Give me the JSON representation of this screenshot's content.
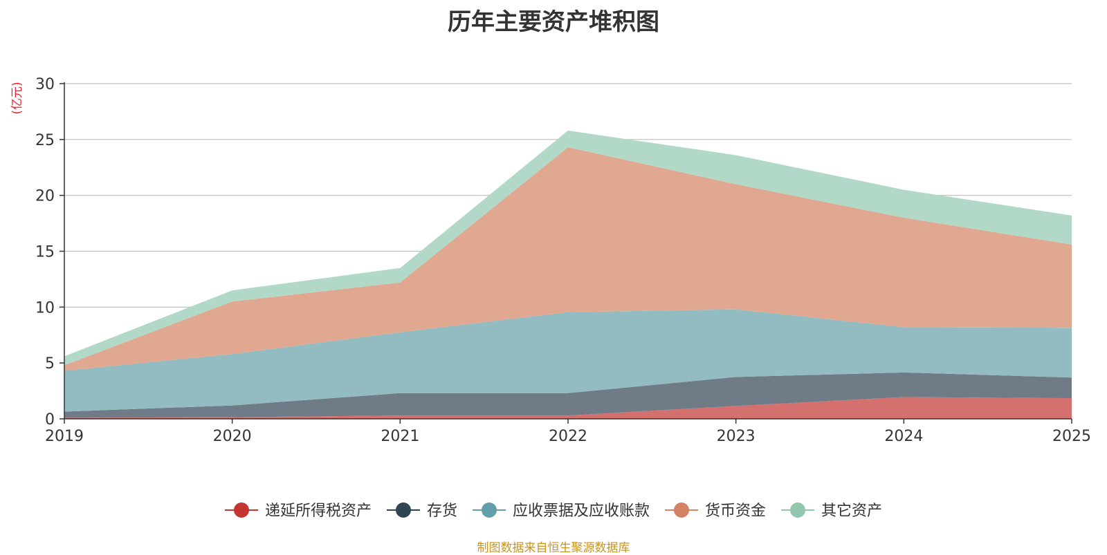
{
  "chart_data": {
    "type": "area",
    "title": "历年主要资产堆积图",
    "ylabel": "(亿元)",
    "xlabel": "",
    "categories": [
      "2019",
      "2020",
      "2021",
      "2022",
      "2023",
      "2024",
      "2025"
    ],
    "ylim": [
      0,
      30
    ],
    "yticks": [
      0,
      5,
      10,
      15,
      20,
      25,
      30
    ],
    "stacked": true,
    "grid": true,
    "legend_position": "bottom",
    "series": [
      {
        "name": "递延所得税资产",
        "color": "#c23531",
        "fill": "#d4706e",
        "values": [
          0.1,
          0.15,
          0.3,
          0.3,
          1.15,
          1.95,
          1.85
        ]
      },
      {
        "name": "存货",
        "color": "#2f4554",
        "fill": "#6f7c87",
        "values": [
          0.55,
          1.05,
          2.0,
          2.0,
          2.6,
          2.2,
          1.85
        ]
      },
      {
        "name": "应收票据及应收账款",
        "color": "#61a0a8",
        "fill": "#92bcc2",
        "values": [
          3.65,
          4.6,
          5.45,
          7.25,
          6.05,
          4.05,
          4.45
        ]
      },
      {
        "name": "货币资金",
        "color": "#d48265",
        "fill": "#e0a791",
        "values": [
          0.5,
          4.7,
          4.45,
          14.75,
          11.2,
          9.8,
          7.45
        ]
      },
      {
        "name": "其它资产",
        "color": "#91c7ae",
        "fill": "#b2d9c7",
        "values": [
          0.8,
          1.0,
          1.3,
          1.5,
          2.6,
          2.5,
          2.6
        ]
      }
    ]
  },
  "footer": {
    "source": "制图数据来自恒生聚源数据库"
  }
}
